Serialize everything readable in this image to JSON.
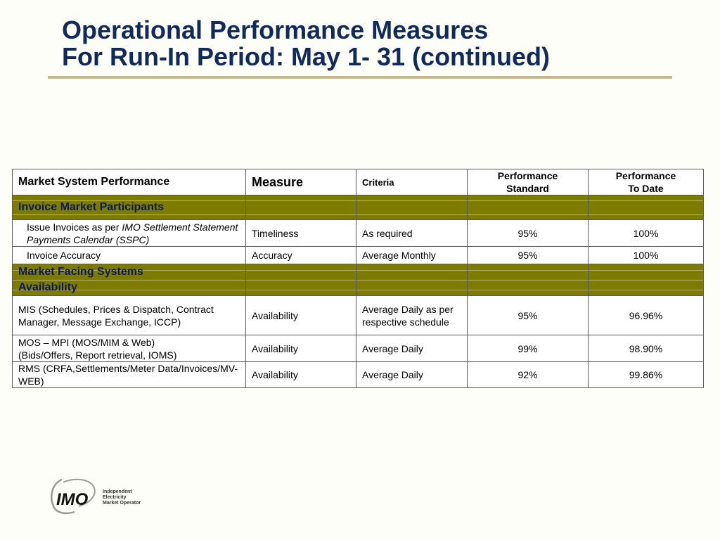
{
  "title": {
    "line1": "Operational Performance Measures",
    "line2": "For Run-In Period: May 1- 31 (continued)"
  },
  "table": {
    "headers": {
      "system": "Market System Performance",
      "measure": "Measure",
      "criteria": "Criteria",
      "standard_1": "Performance",
      "standard_2": "Standard",
      "todate_1": "Performance",
      "todate_2": "To Date"
    },
    "sections": {
      "invoice": "Invoice Market Participants",
      "facing_1": "Market Facing Systems",
      "facing_2": "Availability"
    },
    "rows": [
      {
        "system_prefix": "Issue Invoices as per ",
        "system_italic": "IMO Settlement Statement Payments Calendar (SSPC)",
        "measure": "Timeliness",
        "criteria": "As required",
        "standard": "95%",
        "todate": "100%"
      },
      {
        "system": "Invoice Accuracy",
        "measure": "Accuracy",
        "criteria": "Average Monthly",
        "standard": "95%",
        "todate": "100%"
      },
      {
        "system": "MIS (Schedules, Prices & Dispatch, Contract Manager, Message Exchange, ICCP)",
        "measure": "Availability",
        "criteria": "Average Daily as per respective schedule",
        "standard": "95%",
        "todate": "96.96%"
      },
      {
        "system_1": "MOS – MPI (MOS/MIM & Web)",
        "system_2": "(Bids/Offers, Report retrieval, IOMS)",
        "measure": "Availability",
        "criteria": "Average Daily",
        "standard": "99%",
        "todate": "98.90%"
      },
      {
        "system": "RMS (CRFA,Settlements/Meter Data/Invoices/MV-WEB)",
        "measure": "Availability",
        "criteria": "Average Daily",
        "standard": "92%",
        "todate": "99.86%"
      }
    ]
  },
  "logo": {
    "mark": "IMO",
    "line1": "Independent",
    "line2": "Electricity",
    "line3": "Market Operator"
  },
  "colors": {
    "title": "#102a5e",
    "rule": "#c9b88a",
    "section_fill": "#7e7c00",
    "section_text": "#0c1a55"
  }
}
